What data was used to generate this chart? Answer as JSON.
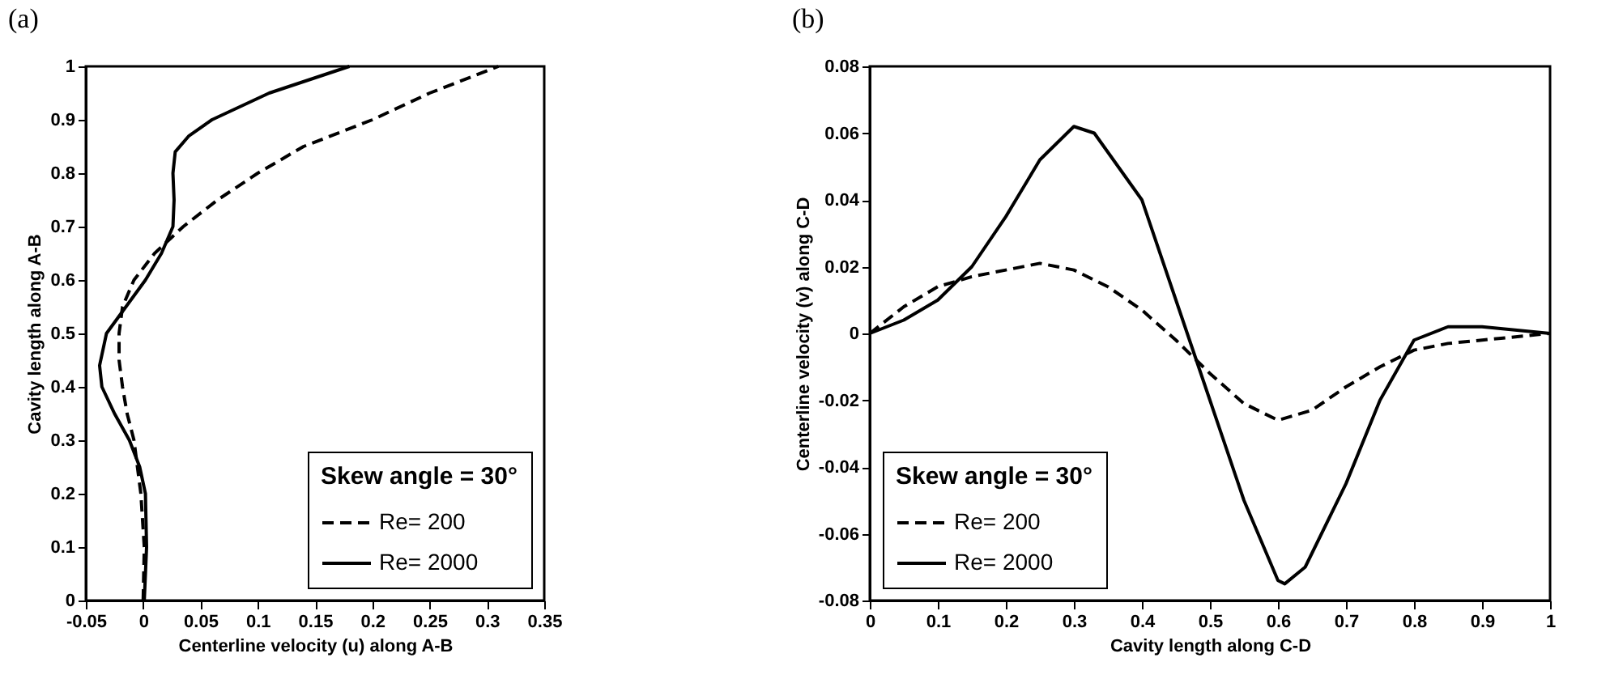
{
  "chart_data": [
    {
      "type": "line",
      "title": "(a)",
      "xlabel": "Centerline velocity (u) along A-B",
      "ylabel": "Cavity length along A-B",
      "legend_title": "Skew angle = 30°",
      "xlim": [
        -0.05,
        0.35
      ],
      "xticks": [
        -0.05,
        0,
        0.05,
        0.1,
        0.15,
        0.2,
        0.25,
        0.3,
        0.35
      ],
      "ylim": [
        0,
        1
      ],
      "yticks": [
        0,
        0.1,
        0.2,
        0.3,
        0.4,
        0.5,
        0.6,
        0.7,
        0.8,
        0.9,
        1
      ],
      "grid": false,
      "legend": "bottom right",
      "series": [
        {
          "name": "Re= 200",
          "color": "#000000",
          "line_style": "dashed",
          "x": [
            0,
            0.001,
            -0.002,
            -0.008,
            -0.014,
            -0.018,
            -0.021,
            -0.021,
            -0.018,
            -0.008,
            0.01,
            0.035,
            0.065,
            0.1,
            0.14,
            0.2,
            0.25,
            0.31
          ],
          "values": [
            0,
            0.1,
            0.2,
            0.3,
            0.35,
            0.4,
            0.45,
            0.5,
            0.55,
            0.6,
            0.65,
            0.7,
            0.75,
            0.8,
            0.85,
            0.9,
            0.95,
            1
          ]
        },
        {
          "name": "Re= 2000",
          "color": "#000000",
          "line_style": "solid",
          "x": [
            0.001,
            0.003,
            0.002,
            -0.003,
            -0.012,
            -0.025,
            -0.036,
            -0.038,
            -0.032,
            -0.015,
            0.002,
            0.016,
            0.026,
            0.027,
            0.026,
            0.028,
            0.04,
            0.06,
            0.11,
            0.18
          ],
          "values": [
            0,
            0.1,
            0.2,
            0.25,
            0.3,
            0.35,
            0.4,
            0.44,
            0.5,
            0.55,
            0.6,
            0.65,
            0.7,
            0.75,
            0.8,
            0.84,
            0.87,
            0.9,
            0.95,
            1
          ]
        }
      ]
    },
    {
      "type": "line",
      "title": "(b)",
      "xlabel": "Cavity length along C-D",
      "ylabel": "Centerline velocity (v) along C-D",
      "legend_title": "Skew angle = 30°",
      "xlim": [
        0,
        1
      ],
      "xticks": [
        0,
        0.1,
        0.2,
        0.3,
        0.4,
        0.5,
        0.6,
        0.7,
        0.8,
        0.9,
        1
      ],
      "ylim": [
        -0.08,
        0.08
      ],
      "yticks": [
        -0.08,
        -0.06,
        -0.04,
        -0.02,
        0,
        0.02,
        0.04,
        0.06,
        0.08
      ],
      "grid": false,
      "legend": "bottom left",
      "series": [
        {
          "name": "Re= 200",
          "color": "#000000",
          "line_style": "dashed",
          "x": [
            0,
            0.05,
            0.1,
            0.15,
            0.2,
            0.25,
            0.3,
            0.35,
            0.4,
            0.45,
            0.5,
            0.55,
            0.6,
            0.65,
            0.7,
            0.75,
            0.8,
            0.85,
            0.9,
            1
          ],
          "values": [
            0,
            0.008,
            0.014,
            0.017,
            0.019,
            0.021,
            0.019,
            0.014,
            0.007,
            -0.002,
            -0.012,
            -0.021,
            -0.026,
            -0.023,
            -0.016,
            -0.01,
            -0.005,
            -0.003,
            -0.002,
            0
          ]
        },
        {
          "name": "Re= 2000",
          "color": "#000000",
          "line_style": "solid",
          "x": [
            0,
            0.05,
            0.1,
            0.15,
            0.2,
            0.25,
            0.3,
            0.33,
            0.4,
            0.45,
            0.5,
            0.55,
            0.6,
            0.61,
            0.64,
            0.7,
            0.75,
            0.8,
            0.85,
            0.9,
            1
          ],
          "values": [
            0,
            0.004,
            0.01,
            0.02,
            0.035,
            0.052,
            0.062,
            0.06,
            0.04,
            0.01,
            -0.02,
            -0.05,
            -0.074,
            -0.075,
            -0.07,
            -0.045,
            -0.02,
            -0.002,
            0.002,
            0.002,
            0
          ]
        }
      ]
    }
  ]
}
